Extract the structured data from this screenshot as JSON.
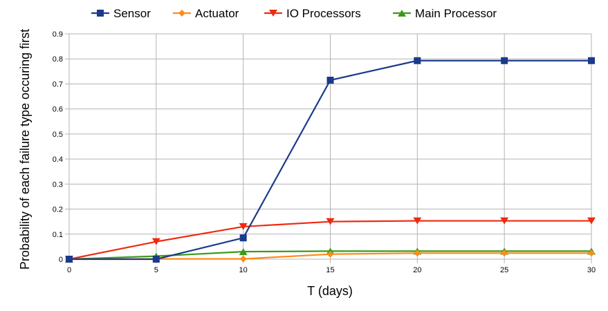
{
  "chart_data": {
    "type": "line",
    "title": "",
    "xlabel": "T (days)",
    "ylabel": "Probability of each failure type occuring first",
    "x": [
      0,
      5,
      10,
      15,
      20,
      25,
      30
    ],
    "xlim": [
      0,
      30
    ],
    "ylim": [
      0,
      0.9
    ],
    "x_ticks": [
      "0",
      "5",
      "10",
      "15",
      "20",
      "25",
      "30"
    ],
    "y_ticks": [
      "0",
      "0.1",
      "0.2",
      "0.3",
      "0.4",
      "0.5",
      "0.6",
      "0.7",
      "0.8",
      "0.9"
    ],
    "grid": true,
    "legend_position": "top",
    "series": [
      {
        "name": "Sensor",
        "color": "#1a3a8a",
        "marker": "square",
        "values": [
          0,
          0,
          0.085,
          0.715,
          0.793,
          0.793,
          0.793
        ]
      },
      {
        "name": "Actuator",
        "color": "#ff8c1a",
        "marker": "diamond",
        "values": [
          0,
          0.001,
          0.001,
          0.02,
          0.024,
          0.024,
          0.024
        ]
      },
      {
        "name": "IO Processors",
        "color": "#ee2a10",
        "marker": "triangle-down",
        "values": [
          0,
          0.07,
          0.13,
          0.15,
          0.153,
          0.153,
          0.153
        ]
      },
      {
        "name": "Main Processor",
        "color": "#3a9a1a",
        "marker": "triangle-up",
        "values": [
          0,
          0.012,
          0.03,
          0.032,
          0.032,
          0.032,
          0.032
        ]
      }
    ]
  }
}
